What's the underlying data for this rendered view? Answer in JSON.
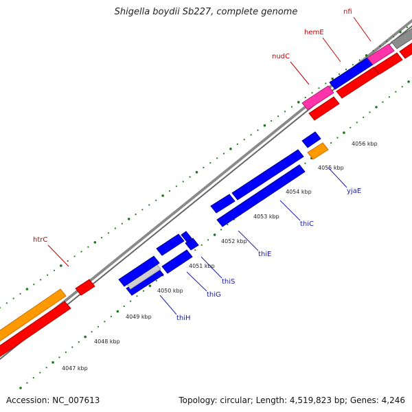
{
  "title": "Shigella boydii Sb227, complete genome",
  "footer": {
    "accession": "Accession: NC_007613",
    "summary": "Topology: circular; Length: 4,519,823 bp; Genes: 4,246"
  },
  "colors": {
    "backbone": "#8a8a8a",
    "tick": "#1a7a1a",
    "red_gene": "#ff0000",
    "blue_gene": "#0000ff",
    "orange_gene": "#ff9900",
    "magenta_gene": "#ff33aa",
    "gray_gene": "#8c8c8c",
    "light_gray_gene": "#cfcfcf",
    "label_red": "#c00000",
    "label_blue": "#1a1aa6"
  },
  "kbp_labels": [
    "4047 kbp",
    "4048 kbp",
    "4049 kbp",
    "4050 kbp",
    "4051 kbp",
    "4052 kbp",
    "4053 kbp",
    "4054 kbp",
    "4055 kbp",
    "4056 kbp"
  ],
  "top_labels": [
    "htrC",
    "nudC",
    "hemE",
    "nfi"
  ],
  "bottom_labels": [
    "thiH",
    "thiG",
    "thiS",
    "thiE",
    "thiC",
    "yjaE"
  ]
}
